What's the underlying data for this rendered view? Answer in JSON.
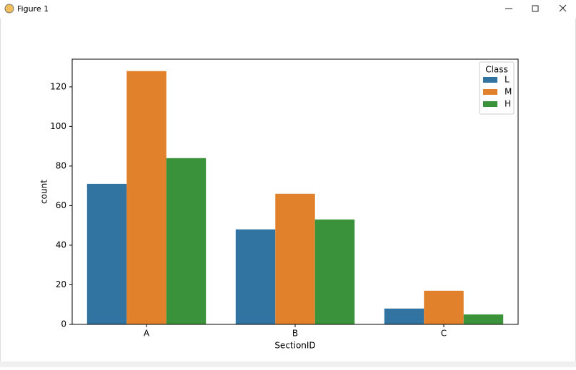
{
  "window": {
    "title": "Figure 1"
  },
  "chart_data": {
    "type": "bar",
    "xlabel": "SectionID",
    "ylabel": "count",
    "categories": [
      "A",
      "B",
      "C"
    ],
    "series": [
      {
        "name": "L",
        "color": "#3274a1",
        "values": [
          71,
          48,
          8
        ]
      },
      {
        "name": "M",
        "color": "#e1812c",
        "values": [
          128,
          66,
          17
        ]
      },
      {
        "name": "H",
        "color": "#3a923a",
        "values": [
          84,
          53,
          5
        ]
      }
    ],
    "legend_title": "Class",
    "legend": "upper right",
    "ylim": [
      0,
      134
    ],
    "yticks": [
      0,
      20,
      40,
      60,
      80,
      100,
      120
    ]
  }
}
